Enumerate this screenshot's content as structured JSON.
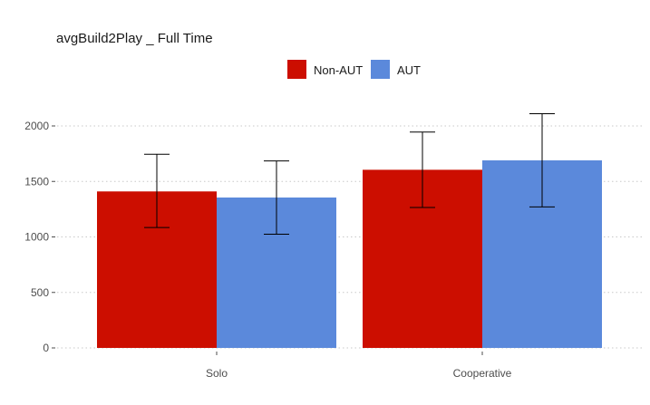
{
  "chart_data": {
    "type": "bar",
    "title": "avgBuild2Play _ Full Time",
    "xlabel": "",
    "ylabel": "",
    "categories": [
      "Solo",
      "Cooperative"
    ],
    "series": [
      {
        "name": "Non-AUT",
        "color": "#cc0e00",
        "values": [
          1410,
          1605
        ],
        "err_low": [
          1085,
          1265
        ],
        "err_high": [
          1745,
          1945
        ]
      },
      {
        "name": "AUT",
        "color": "#5b89db",
        "values": [
          1355,
          1690
        ],
        "err_low": [
          1025,
          1270
        ],
        "err_high": [
          1685,
          2110
        ]
      }
    ],
    "ylim": [
      0,
      2150
    ],
    "yticks": [
      0,
      500,
      1000,
      1500,
      2000
    ],
    "grid": "horizontal-dotted",
    "legend": "top"
  }
}
